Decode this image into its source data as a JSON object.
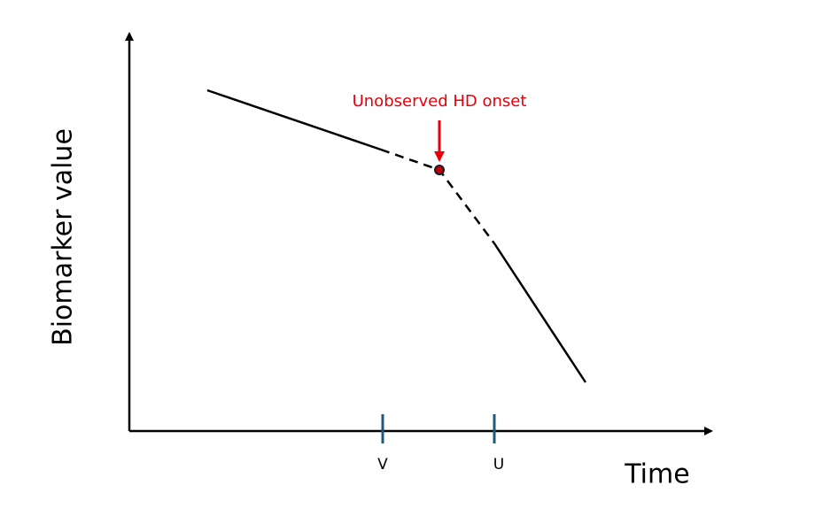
{
  "axes": {
    "y_label": "Biomarker value",
    "x_label": "Time",
    "x_markers": [
      "V",
      "U"
    ]
  },
  "annotation": "Unobserved HD onset"
}
